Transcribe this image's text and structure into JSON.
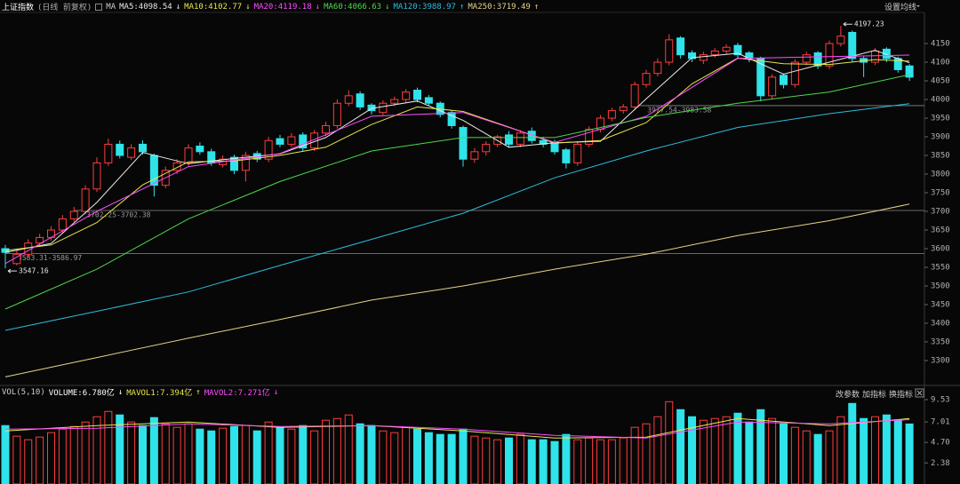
{
  "chart_data": [
    {
      "type": "candlestick",
      "title": "上证指数",
      "subtitle": "(日线 前复权)",
      "indicator": "MA",
      "settings_label": "设置均线",
      "up_color": "#ff3c3c",
      "down_color": "#2fe3ea",
      "open": [
        3600,
        3560,
        3585,
        3615,
        3630,
        3650,
        3680,
        3700,
        3760,
        3830,
        3880,
        3845,
        3880,
        3850,
        3770,
        3810,
        3830,
        3875,
        3860,
        3825,
        3845,
        3810,
        3855,
        3840,
        3895,
        3880,
        3905,
        3870,
        3910,
        3930,
        3990,
        4015,
        3985,
        3965,
        3990,
        4000,
        4025,
        4005,
        3990,
        3965,
        3925,
        3840,
        3860,
        3880,
        3905,
        3880,
        3915,
        3890,
        3885,
        3865,
        3830,
        3880,
        3920,
        3950,
        3970,
        3980,
        4040,
        4070,
        4100,
        4165,
        4125,
        4105,
        4120,
        4130,
        4145,
        4125,
        4110,
        4010,
        4065,
        4040,
        4100,
        4125,
        4090,
        4150,
        4180,
        4110,
        4100,
        4135,
        4110,
        4090
      ],
      "high": [
        3610,
        3595,
        3625,
        3640,
        3660,
        3690,
        3712,
        3770,
        3845,
        3895,
        3890,
        3880,
        3890,
        3855,
        3820,
        3840,
        3880,
        3885,
        3868,
        3850,
        3852,
        3860,
        3862,
        3900,
        3905,
        3910,
        3912,
        3918,
        3940,
        4000,
        4025,
        4022,
        3990,
        3998,
        4008,
        4028,
        4032,
        4012,
        3995,
        3970,
        3930,
        3870,
        3888,
        3905,
        3915,
        3918,
        3925,
        3900,
        3892,
        3870,
        3888,
        3928,
        3958,
        3978,
        3988,
        4048,
        4080,
        4110,
        4175,
        4170,
        4132,
        4128,
        4138,
        4148,
        4152,
        4130,
        4115,
        4068,
        4070,
        4108,
        4128,
        4130,
        4158,
        4197.23,
        4185,
        4115,
        4138,
        4140,
        4115,
        4095
      ],
      "low": [
        3547.16,
        3555,
        3578,
        3608,
        3622,
        3642,
        3672,
        3692,
        3752,
        3822,
        3842,
        3838,
        3852,
        3740,
        3762,
        3800,
        3822,
        3852,
        3822,
        3818,
        3800,
        3780,
        3832,
        3832,
        3872,
        3872,
        3862,
        3862,
        3902,
        3922,
        3982,
        3972,
        3960,
        3958,
        3982,
        3992,
        3992,
        3982,
        3952,
        3922,
        3820,
        3830,
        3850,
        3872,
        3872,
        3872,
        3882,
        3872,
        3852,
        3815,
        3822,
        3872,
        3912,
        3942,
        3962,
        3972,
        4032,
        4062,
        4092,
        4110,
        4100,
        4095,
        4112,
        4122,
        4112,
        4100,
        3995,
        4000,
        4030,
        4032,
        4092,
        4082,
        4082,
        4142,
        4100,
        4060,
        4092,
        4100,
        4072,
        4050
      ],
      "close": [
        3590,
        3585,
        3615,
        3630,
        3650,
        3680,
        3700,
        3760,
        3830,
        3880,
        3850,
        3870,
        3860,
        3770,
        3810,
        3830,
        3870,
        3860,
        3830,
        3840,
        3810,
        3850,
        3840,
        3890,
        3880,
        3900,
        3870,
        3910,
        3930,
        3990,
        4010,
        3980,
        3970,
        3990,
        4000,
        4020,
        4000,
        3990,
        3960,
        3930,
        3840,
        3860,
        3880,
        3900,
        3880,
        3910,
        3890,
        3880,
        3860,
        3830,
        3880,
        3920,
        3950,
        3970,
        3980,
        4040,
        4070,
        4100,
        4160,
        4120,
        4110,
        4120,
        4130,
        4140,
        4120,
        4110,
        4010,
        4060,
        4040,
        4100,
        4120,
        4090,
        4150,
        4170,
        4110,
        4100,
        4130,
        4110,
        4080,
        4060
      ],
      "lines": [
        {
          "name": "MA5",
          "legend": "MA5:4098.54",
          "trend": "↓",
          "color": "#e8e8e8",
          "x": [
            0,
            4,
            8,
            12,
            16,
            20,
            24,
            28,
            32,
            36,
            40,
            44,
            48,
            52,
            56,
            60,
            64,
            68,
            72,
            76,
            79
          ],
          "values": [
            3590,
            3614,
            3724,
            3858,
            3828,
            3842,
            3854,
            3898,
            3976,
            3996,
            3944,
            3872,
            3884,
            3888,
            4002,
            4112,
            4124,
            4068,
            4100,
            4132,
            4098.54
          ]
        },
        {
          "name": "MA10",
          "legend": "MA10:4102.77",
          "trend": "↓",
          "color": "#e6e64a",
          "x": [
            0,
            4,
            8,
            12,
            16,
            20,
            24,
            28,
            32,
            36,
            40,
            44,
            48,
            52,
            56,
            60,
            64,
            68,
            72,
            76,
            79
          ],
          "values": [
            3595,
            3610,
            3670,
            3771,
            3833,
            3835,
            3850,
            3872,
            3933,
            3980,
            3968,
            3926,
            3883,
            3890,
            3938,
            4042,
            4111,
            4096,
            4094,
            4107,
            4102.77
          ]
        },
        {
          "name": "MA20",
          "legend": "MA20:4119.18",
          "trend": "↓",
          "color": "#ff4cff",
          "x": [
            0,
            8,
            16,
            24,
            32,
            40,
            48,
            56,
            64,
            72,
            79
          ],
          "values": [
            3560,
            3700,
            3820,
            3855,
            3955,
            3965,
            3885,
            3955,
            4110,
            4115,
            4119.18
          ]
        },
        {
          "name": "MA60",
          "legend": "MA60:4066.63",
          "trend": "↓",
          "color": "#4cd84c",
          "x": [
            0,
            8,
            16,
            24,
            32,
            40,
            48,
            56,
            64,
            72,
            79
          ],
          "values": [
            3438,
            3545,
            3680,
            3780,
            3862,
            3898,
            3898,
            3952,
            3990,
            4020,
            4066.63
          ]
        },
        {
          "name": "MA120",
          "legend": "MA120:3988.97",
          "trend": "↑",
          "color": "#2cbde0",
          "x": [
            0,
            8,
            16,
            24,
            32,
            40,
            48,
            56,
            64,
            72,
            79
          ],
          "values": [
            3381,
            3432,
            3484,
            3555,
            3625,
            3695,
            3790,
            3862,
            3925,
            3962,
            3988.97
          ]
        },
        {
          "name": "MA250",
          "legend": "MA250:3719.49",
          "trend": "↑",
          "color": "#e3d48a",
          "x": [
            0,
            8,
            16,
            24,
            32,
            40,
            48,
            56,
            64,
            72,
            79
          ],
          "values": [
            3256,
            3308,
            3360,
            3410,
            3462,
            3500,
            3545,
            3585,
            3635,
            3675,
            3719.49
          ]
        }
      ],
      "price_lines": [
        {
          "value": 3983.58,
          "label": "3977.54-3983.58",
          "from_index": 55
        },
        {
          "value": 3702.38,
          "label": "3702.25-3702.38",
          "from_index": 6
        },
        {
          "value": 3586.97,
          "label": "3583.31-3586.97",
          "from_index": 0
        }
      ],
      "ylim": [
        3238,
        4243
      ],
      "yticks": [
        3300,
        3350,
        3400,
        3450,
        3500,
        3550,
        3600,
        3650,
        3700,
        3750,
        3800,
        3850,
        3900,
        3950,
        4000,
        4050,
        4100,
        4150
      ]
    },
    {
      "type": "volume",
      "title": "VOL(5,10)",
      "legend": "VOLUME:6.780亿",
      "trend": "↓",
      "values": [
        6.6,
        5.4,
        5.0,
        5.3,
        5.8,
        6.2,
        6.5,
        7.0,
        7.6,
        8.2,
        7.8,
        7.0,
        6.6,
        7.5,
        6.8,
        6.4,
        6.8,
        6.2,
        6.0,
        6.3,
        6.5,
        6.6,
        6.0,
        7.0,
        6.4,
        6.2,
        6.6,
        6.0,
        7.2,
        7.4,
        7.8,
        6.8,
        6.6,
        6.0,
        5.8,
        6.4,
        6.2,
        5.8,
        5.6,
        5.6,
        6.2,
        5.4,
        5.2,
        5.0,
        5.2,
        5.6,
        5.0,
        5.0,
        4.8,
        5.6,
        5.0,
        5.2,
        5.0,
        5.0,
        5.2,
        6.4,
        6.8,
        7.6,
        9.3,
        8.4,
        7.6,
        7.2,
        7.4,
        7.6,
        8.0,
        7.0,
        8.4,
        7.4,
        6.8,
        6.4,
        6.0,
        5.6,
        6.0,
        7.6,
        9.1,
        7.4,
        7.6,
        7.8,
        7.2,
        6.78
      ],
      "lines": [
        {
          "name": "MAVOL1",
          "legend": "MAVOL1:7.394亿",
          "trend": "↑",
          "color": "#e6e64a",
          "x": [
            0,
            8,
            16,
            24,
            32,
            40,
            48,
            56,
            64,
            72,
            79
          ],
          "values": [
            6.0,
            6.6,
            7.0,
            6.4,
            6.6,
            6.0,
            5.2,
            5.3,
            7.4,
            6.6,
            7.394
          ]
        },
        {
          "name": "MAVOL2",
          "legend": "MAVOL2:7.271亿",
          "trend": "↓",
          "color": "#ff4cff",
          "x": [
            0,
            8,
            16,
            24,
            32,
            40,
            48,
            56,
            64,
            72,
            79
          ],
          "values": [
            6.2,
            6.3,
            6.8,
            6.5,
            6.6,
            6.2,
            5.5,
            5.2,
            7.0,
            6.8,
            7.271
          ]
        }
      ],
      "buttons": [
        "改参数",
        "加指标",
        "换指标"
      ],
      "ylim": [
        0,
        9.63
      ],
      "yticks": [
        9.53,
        7.01,
        {
          "value": 4.7,
          "label": "4.70"
        },
        2.38
      ]
    }
  ]
}
